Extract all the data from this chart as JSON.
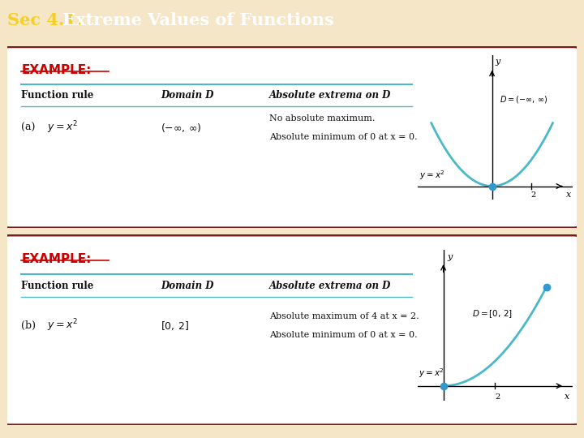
{
  "title_sec": "Sec 4.1:",
  "title_main": " Extreme Values of Functions",
  "title_bg": "#7b1a1a",
  "title_fg": "#ffffff",
  "title_sec_color": "#f5d020",
  "outer_bg": "#f5e6c8",
  "box_bg": "#ffffff",
  "box_border": "#7b1a1a",
  "example_color": "#cc0000",
  "example_text": "EXAMPLE:",
  "table_line_color": "#4ab8c8",
  "col_headers": [
    "Function rule",
    "Domain D",
    "Absolute extrema on D"
  ],
  "row_a_extrema1": "No absolute maximum.",
  "row_a_extrema2": "Absolute minimum of 0 at x = 0.",
  "row_b_extrema1": "Absolute maximum of 4 at x = 2.",
  "row_b_extrema2": "Absolute minimum of 0 at x = 0.",
  "curve_color": "#4ab8c8",
  "dot_color": "#3399cc"
}
